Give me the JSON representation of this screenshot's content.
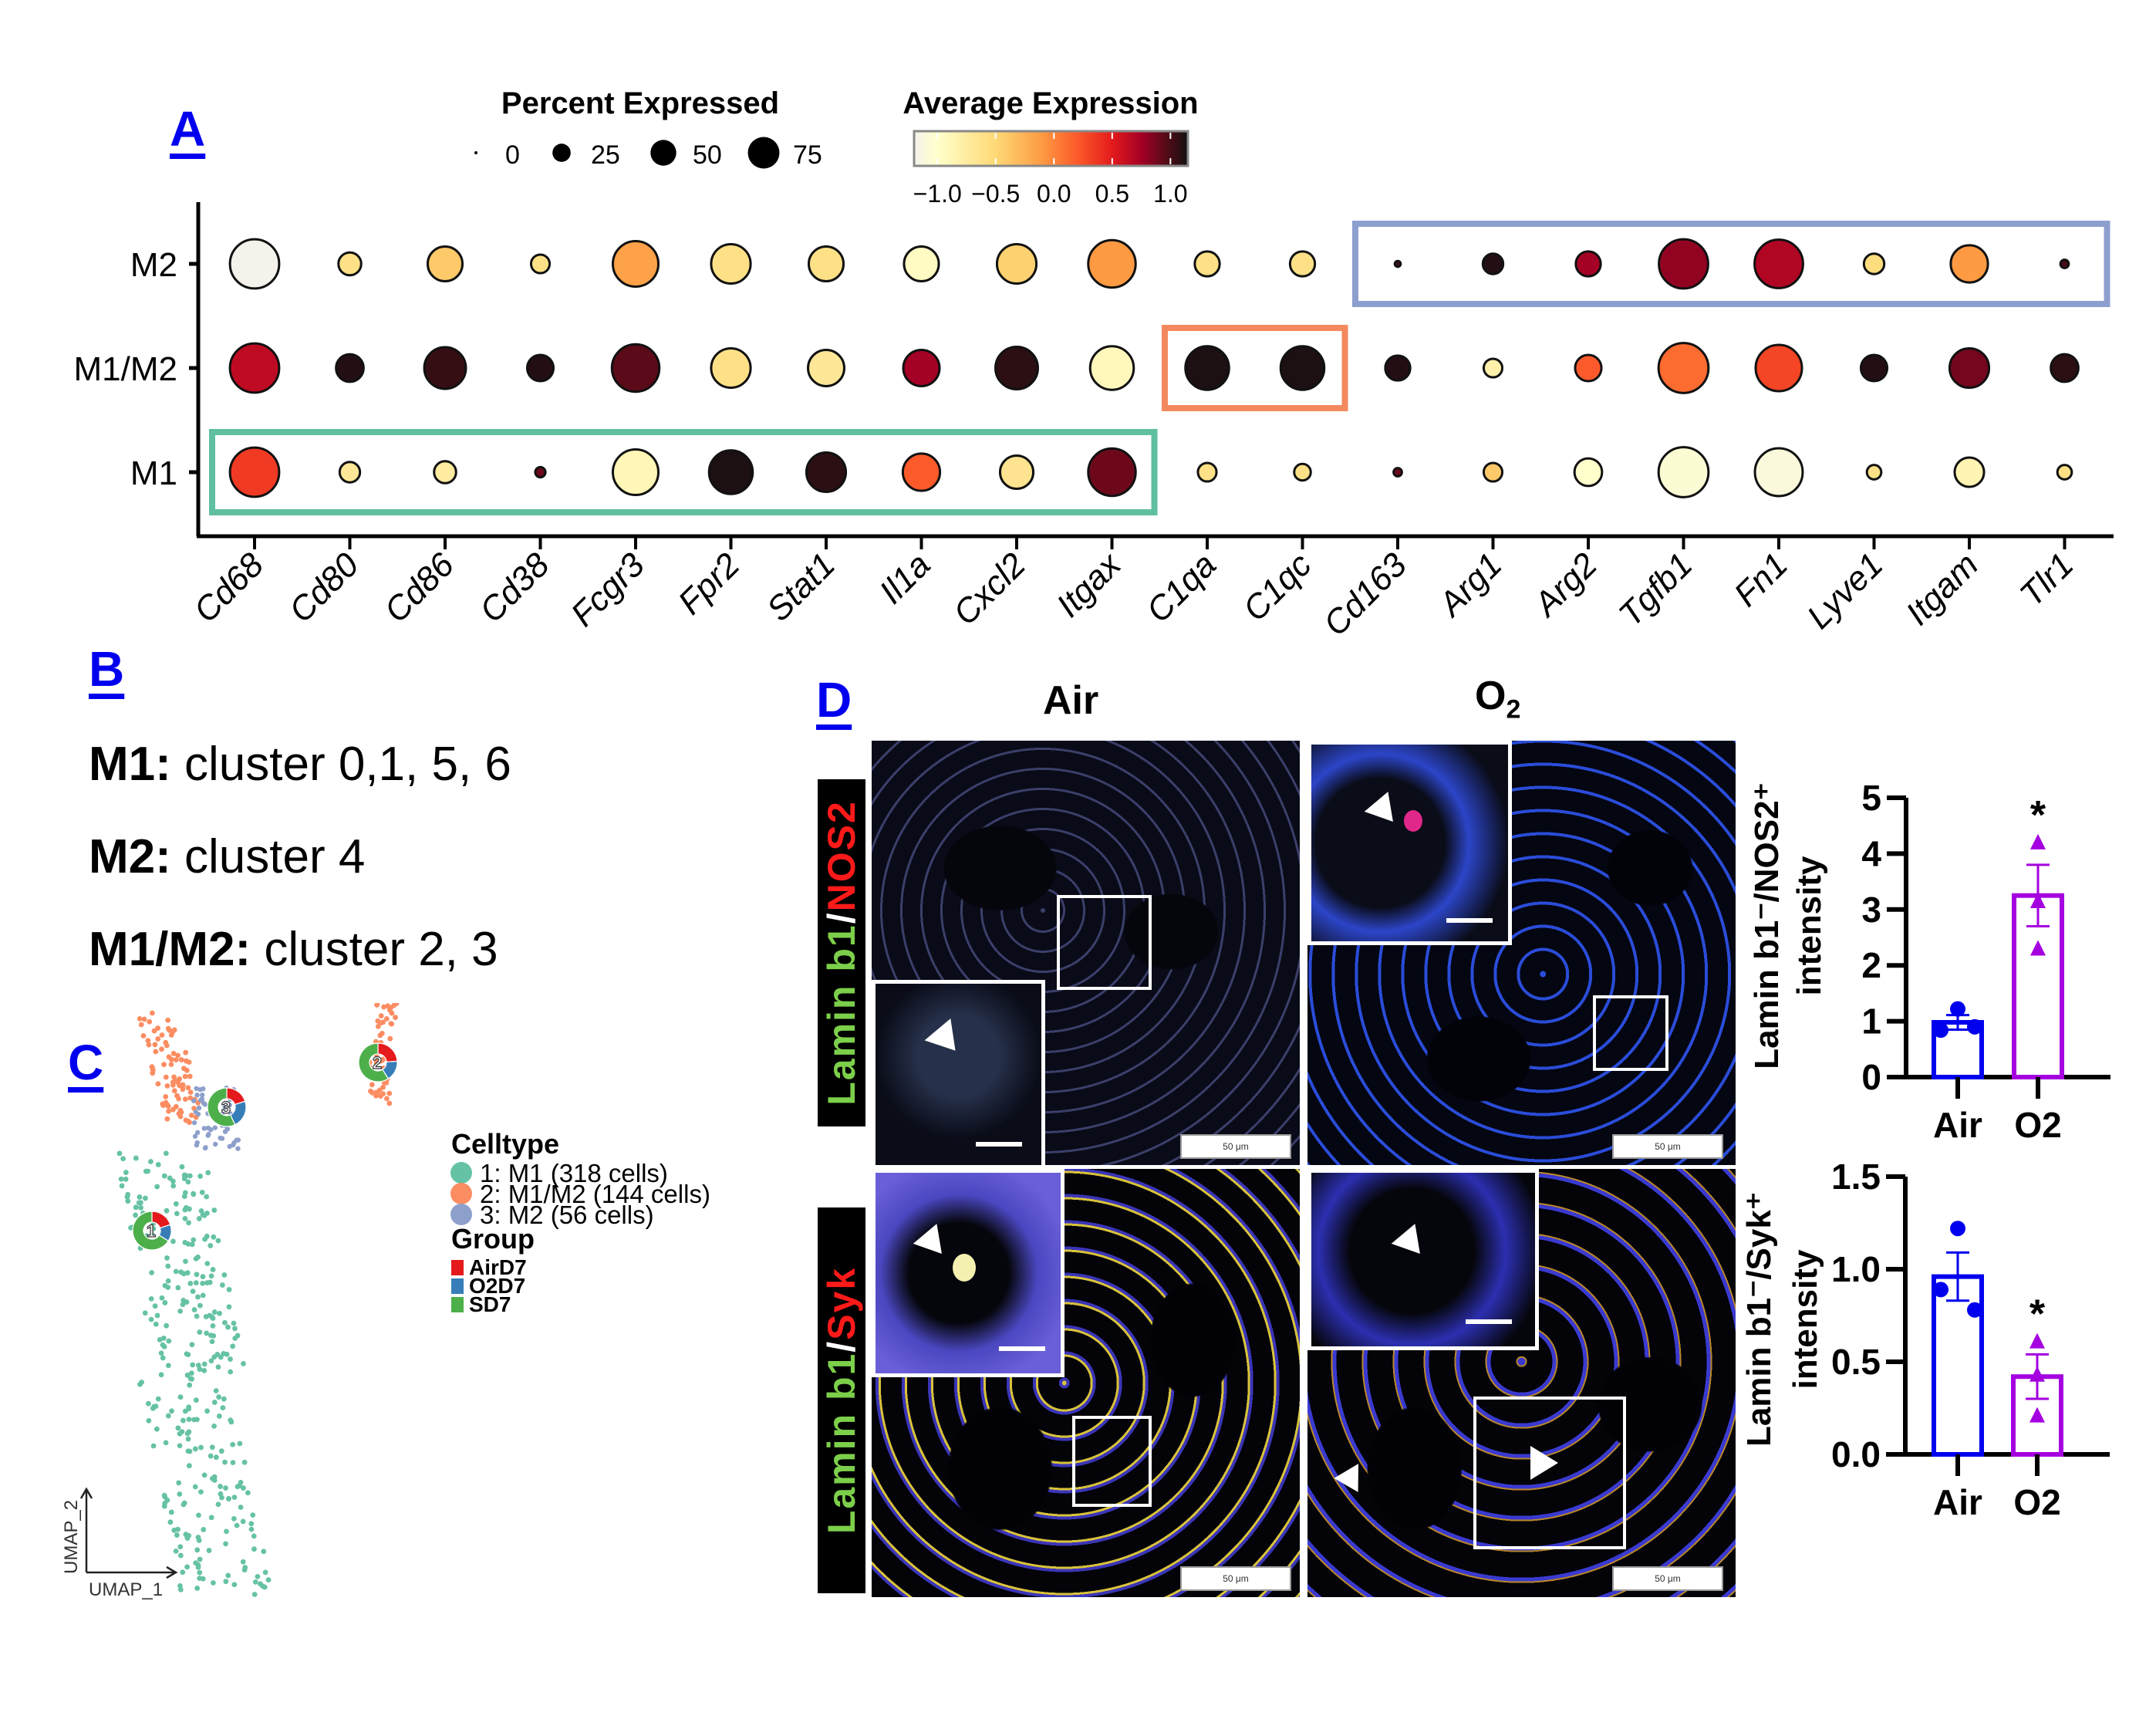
{
  "panels": {
    "A": "A",
    "B": "B",
    "C": "C",
    "D": "D"
  },
  "chart_data": [
    {
      "id": "A",
      "type": "scatter",
      "subtype": "dotplot",
      "title": "",
      "xlabel": "",
      "ylabel": "",
      "categories_x": [
        "Cd68",
        "Cd80",
        "Cd86",
        "Cd38",
        "Fcgr3",
        "Fpr2",
        "Stat1",
        "Il1a",
        "Cxcl2",
        "Itgax",
        "C1qa",
        "C1qc",
        "Cd163",
        "Arg1",
        "Arg2",
        "Tgfb1",
        "Fn1",
        "Lyve1",
        "Itgam",
        "Tlr1"
      ],
      "categories_y": [
        "M2",
        "M1/M2",
        "M1"
      ],
      "size_legend": {
        "title": "Percent Expressed",
        "values": [
          0,
          25,
          50,
          75
        ],
        "labels": [
          "0",
          "25",
          "50",
          "75"
        ]
      },
      "color_legend": {
        "title": "Average Expression",
        "range": [
          -1.2,
          1.15
        ],
        "ticks": [
          -1.0,
          -0.5,
          0.0,
          0.5,
          1.0
        ],
        "tick_labels": [
          "−1.0",
          "−0.5",
          "0.0",
          "0.5",
          "1.0"
        ],
        "stops": [
          {
            "v": -1.2,
            "c": "#f4f2ea"
          },
          {
            "v": -1.0,
            "c": "#ffffcc"
          },
          {
            "v": -0.5,
            "c": "#fed976"
          },
          {
            "v": -0.1,
            "c": "#fd9a42"
          },
          {
            "v": 0.2,
            "c": "#fc5a2a"
          },
          {
            "v": 0.5,
            "c": "#e31a1c"
          },
          {
            "v": 0.75,
            "c": "#a50026"
          },
          {
            "v": 0.95,
            "c": "#5a0a18"
          },
          {
            "v": 1.15,
            "c": "#111111"
          }
        ]
      },
      "series": [
        {
          "name": "M2",
          "pct": [
            70,
            15,
            35,
            10,
            60,
            45,
            35,
            35,
            45,
            65,
            18,
            18,
            1,
            12,
            18,
            70,
            68,
            12,
            40,
            2
          ],
          "avg": [
            -1.2,
            -0.6,
            -0.4,
            -0.6,
            -0.15,
            -0.6,
            -0.6,
            -0.95,
            -0.45,
            -0.1,
            -0.6,
            -0.6,
            1.0,
            1.1,
            0.75,
            0.8,
            0.7,
            -0.55,
            -0.1,
            1.0
          ]
        },
        {
          "name": "M1/M2",
          "pct": [
            70,
            22,
            50,
            20,
            65,
            45,
            38,
            38,
            52,
            55,
            55,
            55,
            18,
            10,
            20,
            72,
            62,
            20,
            45,
            22
          ],
          "avg": [
            0.65,
            1.1,
            1.05,
            1.1,
            0.95,
            -0.6,
            -0.7,
            0.75,
            1.08,
            -0.9,
            1.12,
            1.12,
            1.1,
            -0.8,
            0.2,
            0.12,
            0.3,
            1.1,
            0.88,
            1.08
          ]
        },
        {
          "name": "M1",
          "pct": [
            70,
            12,
            14,
            3,
            60,
            55,
            45,
            40,
            32,
            65,
            10,
            8,
            2,
            10,
            22,
            72,
            66,
            6,
            25,
            6
          ],
          "avg": [
            0.35,
            -0.7,
            -0.75,
            0.9,
            -0.88,
            1.12,
            1.08,
            0.2,
            -0.65,
            0.9,
            -0.6,
            -0.6,
            0.9,
            -0.4,
            -1.0,
            -1.05,
            -1.1,
            -0.6,
            -0.85,
            -0.6
          ]
        }
      ],
      "highlight_boxes": [
        {
          "row": "M1",
          "from": "Cd68",
          "to": "Itgax",
          "color": "#5fbfa0"
        },
        {
          "row": "M1/M2",
          "from": "C1qa",
          "to": "C1qc",
          "color": "#f4895f"
        },
        {
          "row": "M2",
          "from": "Cd163",
          "to": "Tlr1",
          "color": "#8d9fcf"
        }
      ]
    },
    {
      "id": "C",
      "type": "scatter",
      "subtype": "umap_with_donuts",
      "xlabel": "UMAP_1",
      "ylabel": "UMAP_2",
      "legend_celltype": {
        "title": "Celltype",
        "items": [
          {
            "label": "1: M1 (318 cells)",
            "color": "#66c2a5",
            "n": 318
          },
          {
            "label": "2: M1/M2 (144 cells)",
            "color": "#fc8d62",
            "n": 144
          },
          {
            "label": "3: M2 (56 cells)",
            "color": "#8da0cb",
            "n": 56
          }
        ]
      },
      "legend_group": {
        "title": "Group",
        "items": [
          {
            "label": "AirD7",
            "color": "#e41a1c"
          },
          {
            "label": "O2D7",
            "color": "#377eb8"
          },
          {
            "label": "SD7",
            "color": "#4daf4a"
          }
        ]
      },
      "donuts": [
        {
          "cluster": "1",
          "fractions": {
            "AirD7": 0.2,
            "O2D7": 0.14,
            "SD7": 0.66
          }
        },
        {
          "cluster": "2",
          "fractions": {
            "AirD7": 0.24,
            "O2D7": 0.17,
            "SD7": 0.59
          }
        },
        {
          "cluster": "3",
          "fractions": {
            "AirD7": 0.2,
            "O2D7": 0.23,
            "SD7": 0.57
          }
        }
      ]
    },
    {
      "id": "D1",
      "type": "bar",
      "categories": [
        "Air",
        "O2"
      ],
      "values": [
        0.98,
        3.25
      ],
      "sem": [
        0.13,
        0.55
      ],
      "points": [
        [
          1.22,
          0.84,
          0.9
        ],
        [
          4.2,
          3.15,
          2.3
        ]
      ],
      "colors": [
        "#0000ee",
        "#a400e0"
      ],
      "markers": [
        "circle",
        "triangle"
      ],
      "ylabel": "Lamin b1⁻/NOS2⁺ intensity",
      "ylabel_line1": "Lamin b1⁻/NOS2⁺",
      "ylabel_line2": "intensity",
      "ylim": [
        0,
        5
      ],
      "yticks": [
        0,
        1,
        2,
        3,
        4,
        5
      ],
      "ytick_labels": [
        "0",
        "1",
        "2",
        "3",
        "4",
        "5"
      ],
      "significance": [
        "",
        "*"
      ]
    },
    {
      "id": "D2",
      "type": "bar",
      "categories": [
        "Air",
        "O2"
      ],
      "values": [
        0.96,
        0.42
      ],
      "sem": [
        0.13,
        0.12
      ],
      "points": [
        [
          1.22,
          0.89,
          0.78
        ],
        [
          0.61,
          0.43,
          0.21
        ]
      ],
      "colors": [
        "#0000ee",
        "#a400e0"
      ],
      "markers": [
        "circle",
        "triangle"
      ],
      "ylabel": "Lamin b1⁻/Syk⁺ intensity",
      "ylabel_line1": "Lamin b1⁻/Syk⁺",
      "ylabel_line2": "intensity",
      "ylim": [
        0,
        1.5
      ],
      "yticks": [
        0,
        0.5,
        1.0,
        1.5
      ],
      "ytick_labels": [
        "0.0",
        "0.5",
        "1.0",
        "1.5"
      ],
      "significance": [
        "",
        "*"
      ]
    }
  ],
  "panel_b": {
    "lines": [
      {
        "key": "M1:",
        "value": " cluster 0,1, 5, 6"
      },
      {
        "key": "M2:",
        "value": " cluster 4"
      },
      {
        "key": "M1/M2:",
        "value": " cluster 2, 3"
      }
    ]
  },
  "panel_d": {
    "col_air": "Air",
    "col_o2_main": "O",
    "col_o2_sub": "2",
    "row1_stain": {
      "green": "Lamin b1",
      "sep": "/",
      "red": "NOS2"
    },
    "row2_stain": {
      "green": "Lamin b1",
      "sep": "/",
      "red": "Syk"
    },
    "scale_bar_label": "50 μm"
  }
}
